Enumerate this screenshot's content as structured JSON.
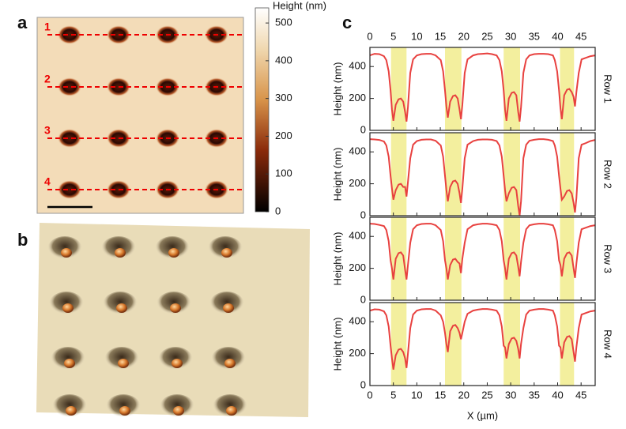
{
  "panel_labels": [
    "a",
    "b",
    "c"
  ],
  "afm_image": {
    "row_labels": [
      "1",
      "2",
      "3",
      "4"
    ],
    "colorbar": {
      "label": "Height (nm)",
      "lim": [
        0,
        540
      ],
      "ticks": [
        0,
        100,
        200,
        300,
        400,
        500
      ]
    }
  },
  "chart_data": [
    {
      "type": "line",
      "y_label": "Height (nm)",
      "side_label": "Row 1",
      "xtick_labels": "top",
      "xlim": [
        0,
        48
      ],
      "xticks": [
        0,
        5,
        10,
        15,
        20,
        25,
        30,
        35,
        40,
        45
      ],
      "ylim": [
        0,
        520
      ],
      "yticks": [
        0,
        200,
        400
      ],
      "highlight_color": "#f3ef9e",
      "highlight_regions": [
        [
          4.5,
          7.8
        ],
        [
          16,
          19.5
        ],
        [
          28.5,
          32
        ],
        [
          40.5,
          43.5
        ]
      ],
      "series": [
        {
          "color": "#e8413f",
          "x": [
            0,
            1,
            2,
            3,
            3.5,
            4,
            4.4,
            4.7,
            5,
            5.5,
            6.1,
            6.6,
            7.1,
            7.5,
            7.8,
            8.1,
            8.6,
            9.2,
            10,
            11,
            12,
            13,
            14,
            15.1,
            15.6,
            16,
            16.3,
            16.6,
            17.1,
            17.7,
            18.2,
            18.7,
            19.1,
            19.4,
            19.7,
            20.2,
            20.8,
            22,
            23,
            24,
            25,
            26,
            27,
            27.6,
            28.1,
            28.5,
            28.8,
            29.1,
            29.6,
            30.2,
            30.7,
            31.2,
            31.6,
            31.9,
            32.2,
            32.7,
            33.3,
            34,
            35,
            36,
            37,
            38,
            39,
            39.4,
            39.9,
            40.3,
            40.6,
            40.9,
            41.4,
            42,
            42.5,
            43,
            43.4,
            43.7,
            44,
            44.5,
            45.1,
            46,
            47,
            48
          ],
          "values": [
            470,
            480,
            478,
            465,
            440,
            370,
            250,
            130,
            60,
            160,
            195,
            200,
            180,
            115,
            55,
            145,
            360,
            445,
            470,
            478,
            480,
            480,
            470,
            440,
            370,
            250,
            150,
            80,
            180,
            215,
            220,
            200,
            130,
            70,
            160,
            360,
            445,
            470,
            478,
            480,
            482,
            478,
            470,
            440,
            370,
            250,
            130,
            60,
            200,
            235,
            240,
            220,
            115,
            55,
            145,
            360,
            445,
            470,
            478,
            480,
            480,
            478,
            470,
            440,
            370,
            250,
            140,
            70,
            220,
            255,
            260,
            240,
            210,
            150,
            240,
            360,
            445,
            455,
            465,
            470
          ]
        }
      ]
    },
    {
      "type": "line",
      "y_label": "Height (nm)",
      "side_label": "Row 2",
      "xtick_labels": "none",
      "xlim": [
        0,
        48
      ],
      "xticks": [
        0,
        5,
        10,
        15,
        20,
        25,
        30,
        35,
        40,
        45
      ],
      "ylim": [
        0,
        520
      ],
      "yticks": [
        0,
        200,
        400
      ],
      "highlight_color": "#f3ef9e",
      "highlight_regions": [
        [
          4.5,
          7.8
        ],
        [
          16,
          19.5
        ],
        [
          28.5,
          32
        ],
        [
          40.5,
          43.5
        ]
      ],
      "series": [
        {
          "color": "#e8413f",
          "x": [
            0,
            1,
            2,
            3,
            3.5,
            4,
            4.4,
            4.7,
            5,
            5.5,
            6.1,
            6.6,
            7.1,
            7.5,
            7.8,
            8.1,
            8.6,
            9.2,
            10,
            11,
            12,
            13,
            14,
            15.1,
            15.6,
            16,
            16.3,
            16.6,
            17.1,
            17.7,
            18.2,
            18.7,
            19.1,
            19.4,
            19.7,
            20.2,
            20.8,
            22,
            23,
            24,
            25,
            26,
            27,
            27.6,
            28.1,
            28.5,
            28.8,
            29.1,
            29.6,
            30.2,
            30.7,
            31.2,
            31.6,
            31.9,
            32.2,
            32.7,
            33.3,
            34,
            35,
            36,
            37,
            38,
            39,
            39.4,
            39.9,
            40.3,
            40.6,
            40.9,
            41.4,
            42,
            42.5,
            43,
            43.4,
            43.7,
            44,
            44.5,
            45.1,
            46,
            47,
            48
          ],
          "values": [
            480,
            478,
            475,
            465,
            440,
            370,
            250,
            170,
            100,
            160,
            195,
            200,
            180,
            180,
            120,
            210,
            360,
            445,
            468,
            476,
            478,
            478,
            470,
            440,
            370,
            250,
            160,
            90,
            180,
            215,
            220,
            200,
            140,
            80,
            170,
            360,
            445,
            468,
            476,
            478,
            478,
            476,
            468,
            440,
            370,
            250,
            160,
            90,
            140,
            175,
            180,
            160,
            60,
            0,
            90,
            360,
            445,
            470,
            476,
            480,
            480,
            476,
            468,
            440,
            370,
            250,
            170,
            100,
            120,
            155,
            160,
            140,
            80,
            20,
            110,
            360,
            445,
            455,
            468,
            475
          ]
        }
      ]
    },
    {
      "type": "line",
      "y_label": "Height (nm)",
      "side_label": "Row 3",
      "xtick_labels": "none",
      "xlim": [
        0,
        48
      ],
      "xticks": [
        0,
        5,
        10,
        15,
        20,
        25,
        30,
        35,
        40,
        45
      ],
      "ylim": [
        0,
        520
      ],
      "yticks": [
        0,
        200,
        400
      ],
      "highlight_color": "#f3ef9e",
      "highlight_regions": [
        [
          4.5,
          7.8
        ],
        [
          16,
          19.5
        ],
        [
          28.5,
          32
        ],
        [
          40.5,
          43.5
        ]
      ],
      "series": [
        {
          "color": "#e8413f",
          "x": [
            0,
            1,
            2,
            3,
            3.5,
            4,
            4.4,
            4.7,
            5,
            5.5,
            6.1,
            6.6,
            7.1,
            7.5,
            7.8,
            8.1,
            8.6,
            9.2,
            10,
            11,
            12,
            13,
            14,
            15.1,
            15.6,
            16,
            16.3,
            16.6,
            17.1,
            17.7,
            18.2,
            18.7,
            19.1,
            19.4,
            19.7,
            20.2,
            20.8,
            22,
            23,
            24,
            25,
            26,
            27,
            27.6,
            28.1,
            28.5,
            28.8,
            29.1,
            29.6,
            30.2,
            30.7,
            31.2,
            31.6,
            31.9,
            32.2,
            32.7,
            33.3,
            34,
            35,
            36,
            37,
            38,
            39,
            39.4,
            39.9,
            40.3,
            40.6,
            40.9,
            41.4,
            42,
            42.5,
            43,
            43.4,
            43.7,
            44,
            44.5,
            45.1,
            46,
            47,
            48
          ],
          "values": [
            480,
            478,
            472,
            465,
            440,
            370,
            250,
            200,
            130,
            260,
            295,
            300,
            280,
            190,
            130,
            220,
            360,
            445,
            470,
            478,
            480,
            480,
            470,
            440,
            370,
            250,
            200,
            130,
            220,
            255,
            260,
            240,
            230,
            170,
            260,
            360,
            445,
            470,
            476,
            480,
            480,
            476,
            470,
            440,
            370,
            250,
            200,
            130,
            260,
            295,
            300,
            280,
            210,
            150,
            240,
            360,
            445,
            470,
            476,
            480,
            480,
            476,
            470,
            440,
            370,
            250,
            220,
            150,
            260,
            295,
            300,
            280,
            200,
            140,
            230,
            360,
            445,
            455,
            465,
            470
          ]
        }
      ]
    },
    {
      "type": "line",
      "y_label": "Height (nm)",
      "side_label": "Row 4",
      "xtick_labels": "bottom",
      "x_label": "X (µm)",
      "xlim": [
        0,
        48
      ],
      "xticks": [
        0,
        5,
        10,
        15,
        20,
        25,
        30,
        35,
        40,
        45
      ],
      "ylim": [
        0,
        520
      ],
      "yticks": [
        0,
        200,
        400
      ],
      "highlight_color": "#f3ef9e",
      "highlight_regions": [
        [
          4.5,
          7.8
        ],
        [
          16,
          19.5
        ],
        [
          28.5,
          32
        ],
        [
          40.5,
          43.5
        ]
      ],
      "series": [
        {
          "color": "#e8413f",
          "x": [
            0,
            1,
            2,
            3,
            3.5,
            4,
            4.4,
            4.7,
            5,
            5.5,
            6.1,
            6.6,
            7.1,
            7.5,
            7.8,
            8.1,
            8.6,
            9.2,
            10,
            11,
            12,
            13,
            14,
            15.1,
            15.6,
            16,
            16.3,
            16.6,
            17.1,
            17.7,
            18.2,
            18.7,
            19.1,
            19.4,
            19.7,
            20.2,
            20.8,
            22,
            23,
            24,
            25,
            26,
            27,
            27.6,
            28.1,
            28.5,
            28.8,
            29.1,
            29.6,
            30.2,
            30.7,
            31.2,
            31.6,
            31.9,
            32.2,
            32.7,
            33.3,
            34,
            35,
            36,
            37,
            38,
            39,
            39.4,
            39.9,
            40.3,
            40.6,
            40.9,
            41.4,
            42,
            42.5,
            43,
            43.4,
            43.7,
            44,
            44.5,
            45.1,
            46,
            47,
            48
          ],
          "values": [
            470,
            478,
            476,
            465,
            440,
            370,
            250,
            170,
            100,
            190,
            225,
            230,
            210,
            170,
            110,
            200,
            360,
            445,
            470,
            478,
            480,
            480,
            470,
            440,
            400,
            330,
            260,
            210,
            340,
            375,
            380,
            360,
            330,
            290,
            330,
            400,
            450,
            470,
            476,
            480,
            480,
            476,
            470,
            440,
            370,
            250,
            240,
            170,
            260,
            295,
            300,
            280,
            230,
            170,
            260,
            360,
            445,
            470,
            476,
            480,
            480,
            476,
            470,
            440,
            370,
            250,
            240,
            170,
            270,
            305,
            310,
            290,
            210,
            150,
            240,
            360,
            445,
            455,
            465,
            470
          ]
        }
      ]
    }
  ]
}
